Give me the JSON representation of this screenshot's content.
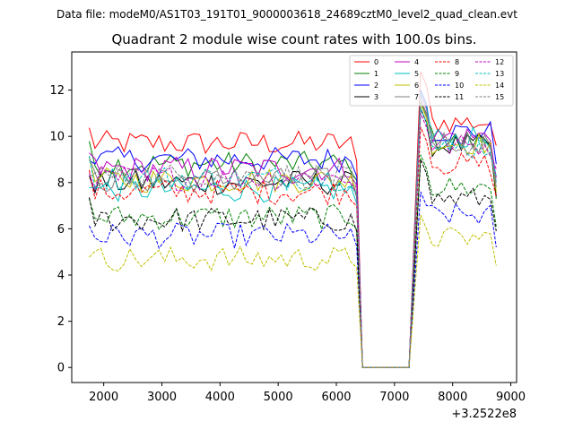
{
  "figure": {
    "suptitle": "Data file: modeM0/AS1T03_191T01_9000003618_24689cztM0_level2_quad_clean.evt",
    "title": "Quadrant 2 module wise count rates with 100.0s bins.",
    "x_offset_label": "+3.2522e8"
  },
  "chart_data": {
    "type": "line",
    "title": "Quadrant 2 module wise count rates with 100.0s bins.",
    "xlabel": "",
    "ylabel": "",
    "x_offset": "+3.2522e8",
    "xlim": [
      1450,
      9100
    ],
    "ylim": [
      -0.65,
      13.65
    ],
    "xticks": [
      2000,
      3000,
      4000,
      5000,
      6000,
      7000,
      8000,
      9000
    ],
    "xtick_labels": [
      "2000",
      "3000",
      "4000",
      "5000",
      "6000",
      "7000",
      "8000",
      "9000"
    ],
    "yticks": [
      0,
      2,
      4,
      6,
      8,
      10,
      12
    ],
    "ytick_labels": [
      "0",
      "2",
      "4",
      "6",
      "8",
      "10",
      "12"
    ],
    "grid": false,
    "legend_position": "upper-right",
    "legend_columns": 4,
    "x_start": 1750,
    "x_step": 100,
    "gap_zero_range": [
      6450,
      7250
    ],
    "series": [
      {
        "name": "0",
        "color": "#ff0000",
        "dash": "solid",
        "mean": 9.7,
        "post_peak": 12.8,
        "post_mean": 10.6,
        "end": 9.6
      },
      {
        "name": "1",
        "color": "#008000",
        "dash": "solid",
        "mean": 8.8,
        "post_peak": 11.5,
        "post_mean": 9.8,
        "end": 7.3
      },
      {
        "name": "2",
        "color": "#0000ff",
        "dash": "solid",
        "mean": 9.0,
        "post_peak": 12.0,
        "post_mean": 10.2,
        "end": 8.8
      },
      {
        "name": "3",
        "color": "#000000",
        "dash": "solid",
        "mean": 8.0,
        "post_peak": 11.2,
        "post_mean": 9.6,
        "end": 7.4
      },
      {
        "name": "4",
        "color": "#bf00bf",
        "dash": "solid",
        "mean": 8.6,
        "post_peak": 11.8,
        "post_mean": 10.0,
        "end": 8.2
      },
      {
        "name": "5",
        "color": "#00bfbf",
        "dash": "solid",
        "mean": 7.7,
        "post_peak": 11.9,
        "post_mean": 9.9,
        "end": 8.0
      },
      {
        "name": "6",
        "color": "#bfbf00",
        "dash": "solid",
        "mean": 8.1,
        "post_peak": 11.4,
        "post_mean": 9.7,
        "end": 7.6
      },
      {
        "name": "7",
        "color": "#808080",
        "dash": "solid",
        "mean": 8.1,
        "post_peak": 11.6,
        "post_mean": 9.8,
        "end": 7.8
      },
      {
        "name": "8",
        "color": "#ff0000",
        "dash": "dashed",
        "mean": 7.6,
        "post_peak": 10.4,
        "post_mean": 8.8,
        "end": 7.4
      },
      {
        "name": "9",
        "color": "#008000",
        "dash": "dashed",
        "mean": 6.5,
        "post_peak": 9.2,
        "post_mean": 7.8,
        "end": 6.1
      },
      {
        "name": "10",
        "color": "#0000ff",
        "dash": "dashed",
        "mean": 5.7,
        "post_peak": 7.6,
        "post_mean": 6.6,
        "end": 5.2
      },
      {
        "name": "11",
        "color": "#000000",
        "dash": "dashed",
        "mean": 6.4,
        "post_peak": 9.0,
        "post_mean": 7.3,
        "end": 5.9
      },
      {
        "name": "12",
        "color": "#bf00bf",
        "dash": "dashed",
        "mean": 8.2,
        "post_peak": 11.0,
        "post_mean": 9.6,
        "end": 8.6
      },
      {
        "name": "13",
        "color": "#00bfbf",
        "dash": "dashed",
        "mean": 8.2,
        "post_peak": 11.2,
        "post_mean": 9.5,
        "end": 8.3
      },
      {
        "name": "14",
        "color": "#bfbf00",
        "dash": "dashed",
        "mean": 4.7,
        "post_peak": 6.6,
        "post_mean": 5.6,
        "end": 4.4
      },
      {
        "name": "15",
        "color": "#808080",
        "dash": "dashed",
        "mean": 8.3,
        "post_peak": 11.5,
        "post_mean": 9.6,
        "end": 8.1
      }
    ]
  }
}
